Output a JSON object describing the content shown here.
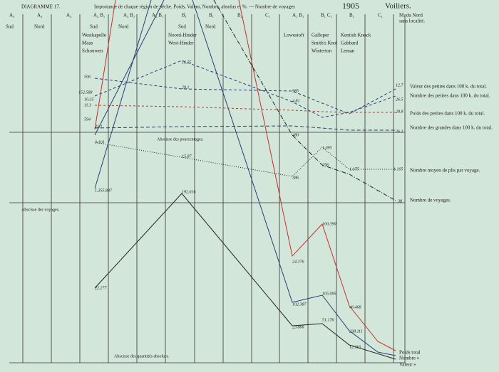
{
  "header": {
    "diagram": "DIAGRAMME 17.",
    "title": "Importance de chaque région de pêche. Poids, Valeur, Nombre, absolus et %. — Nombre de voyages",
    "year": "1905",
    "kind": "Voiliers."
  },
  "columns": {
    "top": [
      "A₃",
      "A₃",
      "A₃",
      "A₂ B₁",
      "A₃ B₁",
      "A₂ B₁",
      "B₁",
      "B₁",
      "B₂",
      "C₁",
      "A₁ B₁",
      "B₁ C₁",
      "B₁",
      "C₁",
      "M. du Nord"
    ],
    "sub": [
      "Sud",
      "Nord",
      "Sud",
      "Nord",
      "Sud",
      "Nord",
      "sans localité."
    ]
  },
  "places": [
    "Westkapelle",
    "Maas",
    "Schouwen",
    "Noord-Hinder",
    "West-Hinder",
    "Lowestoft",
    "Galloper",
    "Smith's Knol",
    "Winterton",
    "Kentish Knock",
    "Gabbard",
    "Leman"
  ],
  "legend": [
    "Valeur des petites dans 100 k. du total.",
    "Nombre des petites dans 100 k. du total.",
    "Poids des petites dans 100 k. du total.",
    "Nombre des grandes dans 100 k. du total.",
    "Nombre moyen de plis par voyage.",
    "Nombre de voyages.",
    "Poids total",
    "Nombre »",
    "Valeur »"
  ],
  "axis_labels": [
    "Abscisse des pourcentages.",
    "Abscisse des voyages.",
    "Abscisse des quantités absolues."
  ],
  "annotations": [
    "1.355.887",
    "22.277",
    "192.616",
    "24.376",
    "100.390",
    "46.468",
    "102.387",
    "105.095",
    "23.866",
    "51.176",
    "238.111",
    "12.116",
    "506",
    "152.588",
    "10.35",
    "11.3",
    "594",
    "21.1",
    "3.110",
    "16.75",
    "29.1",
    "15.87",
    "985",
    "4.81",
    "480",
    "386",
    "1.095",
    "256",
    "1.175",
    "1.105",
    "38",
    "12.7",
    "26.5",
    "28.8",
    "26.1"
  ]
}
